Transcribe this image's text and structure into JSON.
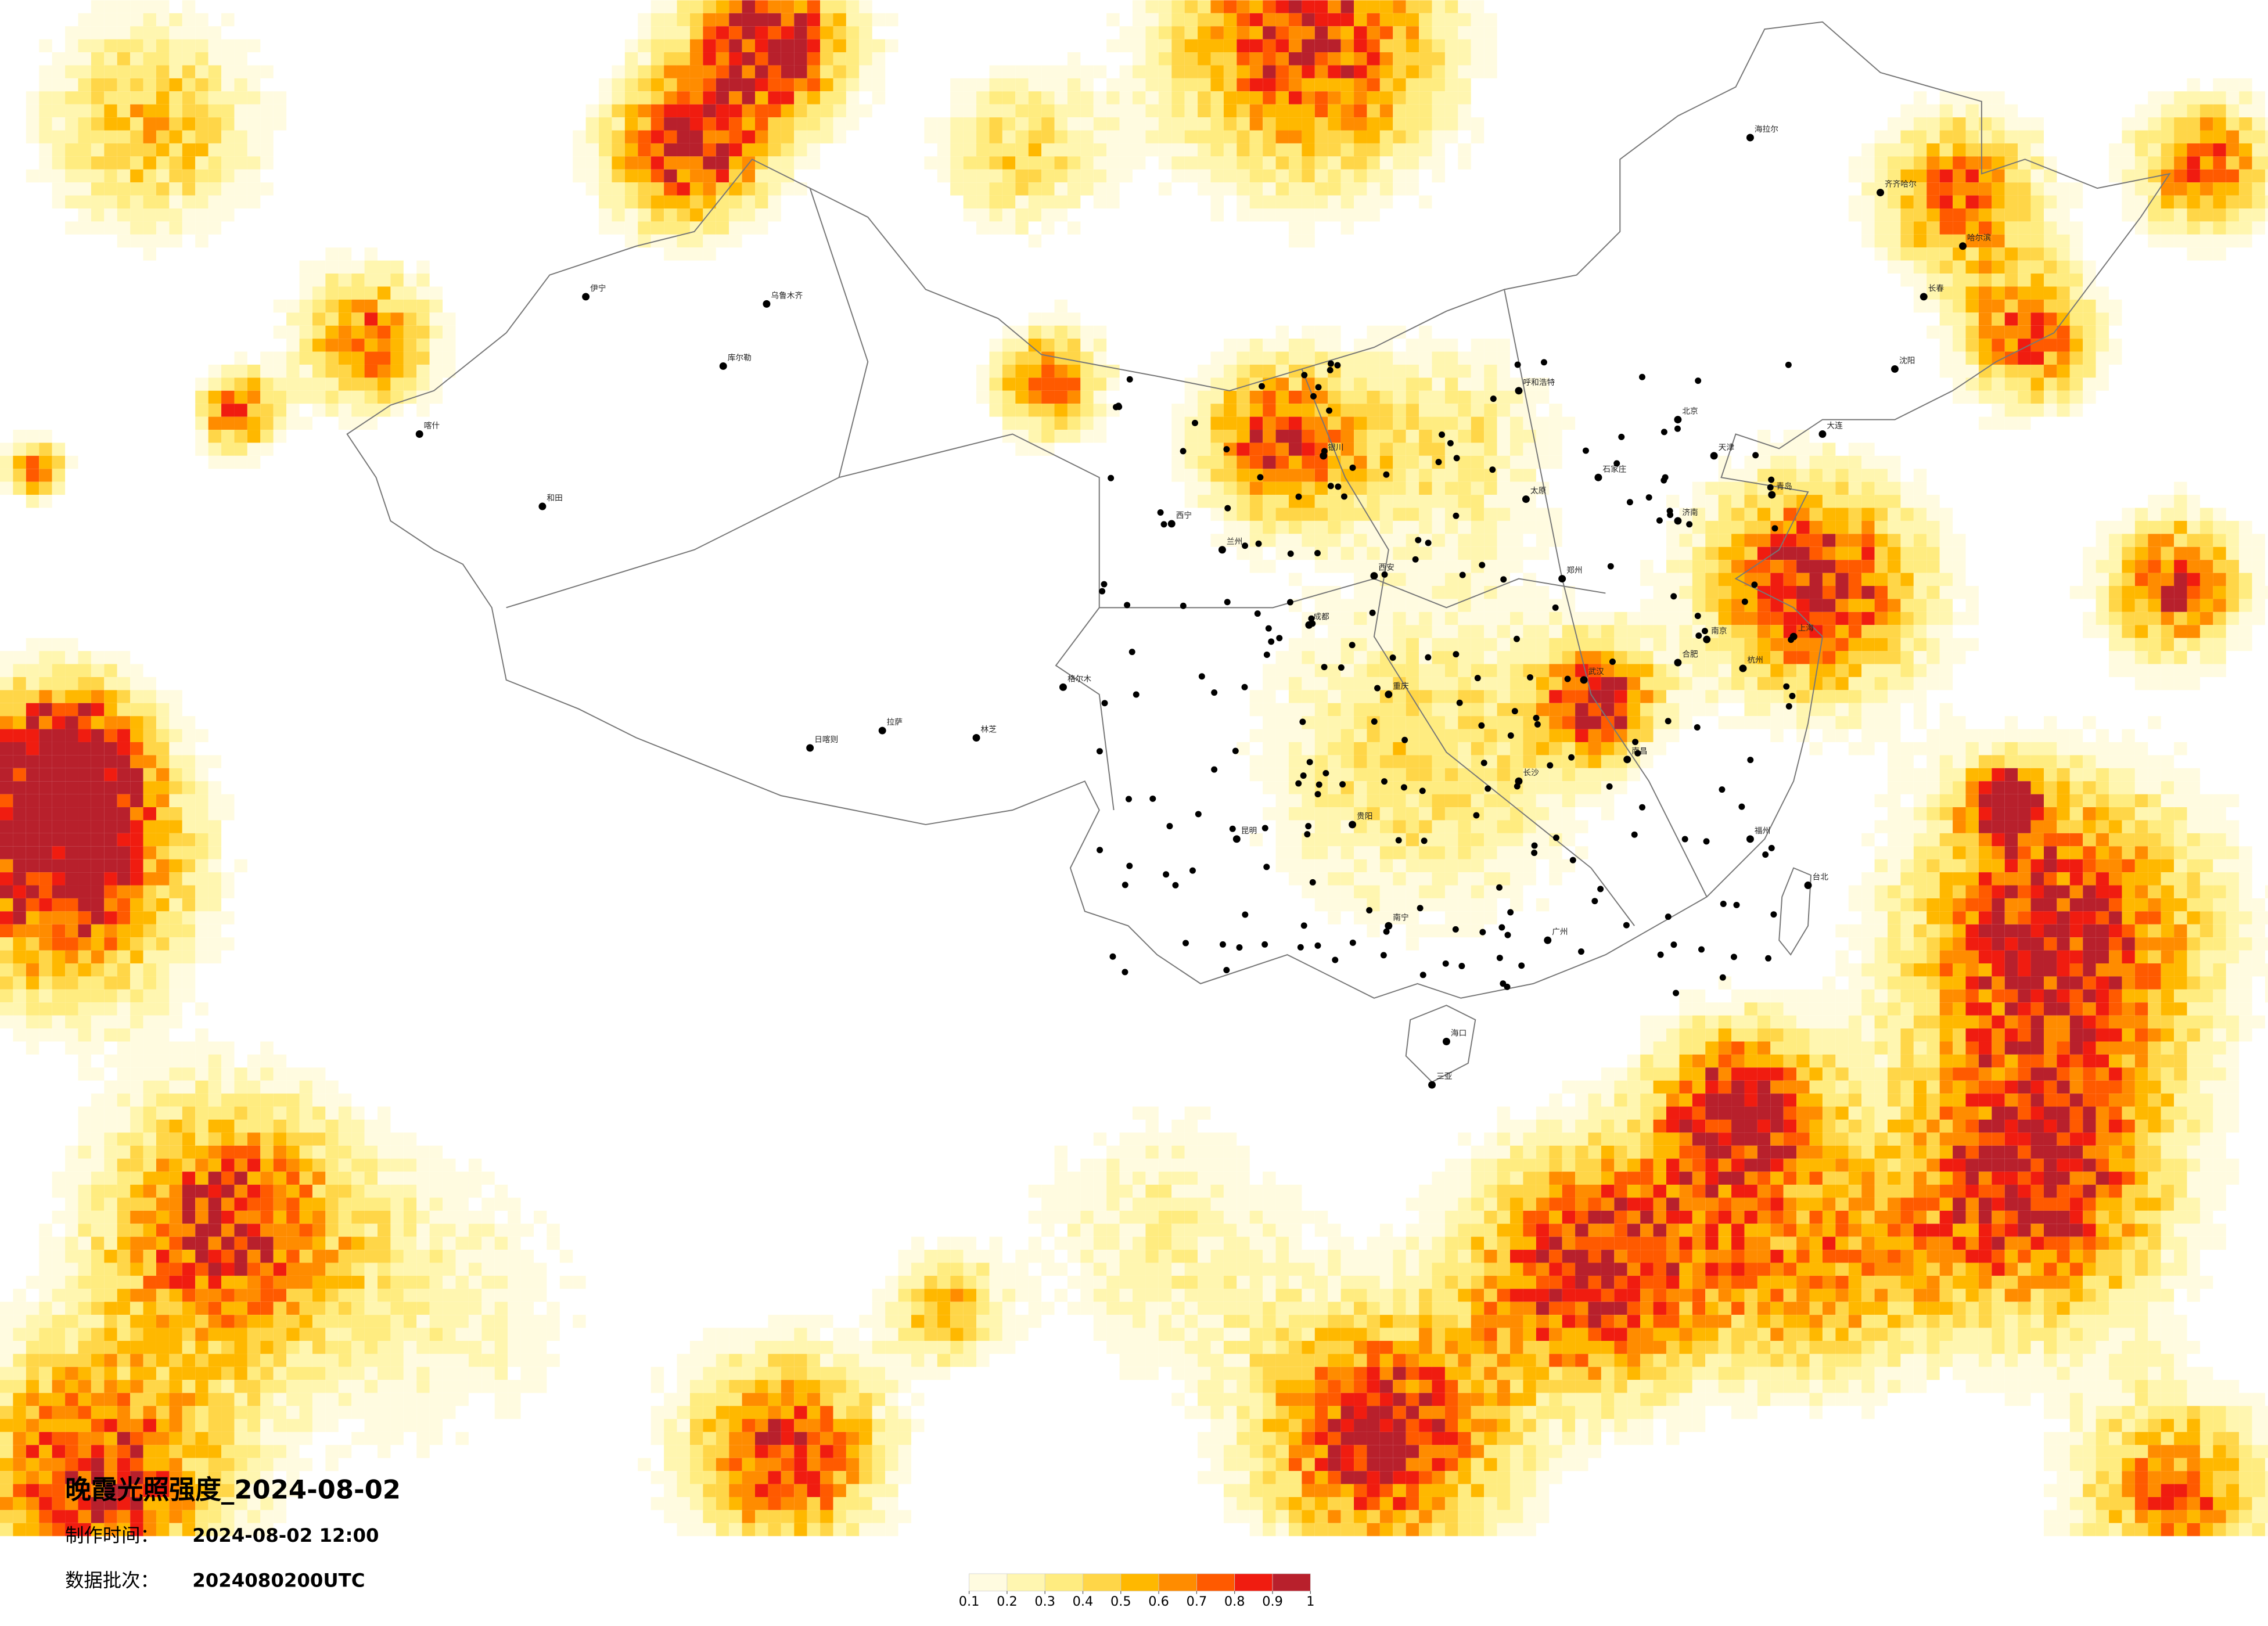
{
  "map": {
    "title": "晚霞光照强度_2024-08-02",
    "made_label": "制作时间：",
    "made_time": "2024-08-02 12:00",
    "batch_label": "数据批次：",
    "batch": "2024080200UTC"
  },
  "colorbar": {
    "ticks": [
      0.1,
      0.2,
      0.3,
      0.4,
      0.5,
      0.6,
      0.7,
      0.8,
      0.9,
      1
    ],
    "colors": [
      "#fffbe0",
      "#fff6b0",
      "#ffec80",
      "#ffd648",
      "#ffb800",
      "#ff8c00",
      "#ff5a00",
      "#f01c10",
      "#b8202c"
    ]
  },
  "cities": [
    "伊宁",
    "乌鲁木齐",
    "喀什",
    "和田",
    "拉萨",
    "日喀则",
    "林芝",
    "西宁",
    "兰州",
    "银川",
    "呼和浩特",
    "北京",
    "天津",
    "石家庄",
    "太原",
    "济南",
    "郑州",
    "西安",
    "成都",
    "重庆",
    "贵阳",
    "昆明",
    "南宁",
    "广州",
    "长沙",
    "武汉",
    "南昌",
    "杭州",
    "上海",
    "南京",
    "合肥",
    "福州",
    "台北",
    "海口",
    "三亚",
    "哈尔滨",
    "长春",
    "沈阳",
    "齐齐哈尔",
    "海拉尔",
    "库尔勒",
    "格尔木",
    "大连",
    "青岛"
  ]
}
